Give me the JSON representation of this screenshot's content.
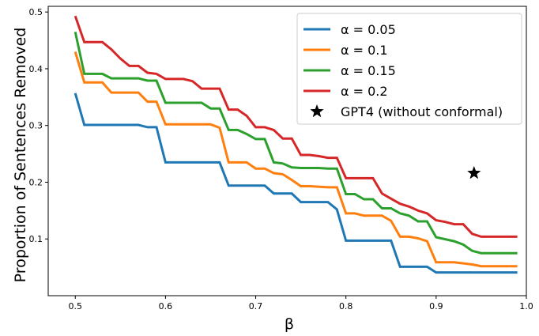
{
  "chart_data": {
    "type": "line",
    "title": "",
    "xlabel": "β",
    "ylabel": "Proportion of Sentences Removed",
    "xlim": [
      0.47,
      1.0
    ],
    "ylim": [
      0.0,
      0.51
    ],
    "xticks": [
      0.5,
      0.6,
      0.7,
      0.8,
      0.9,
      1.0
    ],
    "xtick_labels": [
      "0.5",
      "0.6",
      "0.7",
      "0.8",
      "0.9",
      "1.0"
    ],
    "yticks": [
      0.1,
      0.2,
      0.3,
      0.4,
      0.5
    ],
    "ytick_labels": [
      "0.1",
      "0.2",
      "0.3",
      "0.4",
      "0.5"
    ],
    "grid": false,
    "legend_position": "top-right",
    "series": [
      {
        "name": "α = 0.05",
        "color": "#1f77b4",
        "x": [
          0.5,
          0.51,
          0.57,
          0.58,
          0.59,
          0.6,
          0.66,
          0.67,
          0.71,
          0.72,
          0.74,
          0.75,
          0.78,
          0.79,
          0.8,
          0.85,
          0.86,
          0.89,
          0.9,
          0.99
        ],
        "y": [
          0.357,
          0.301,
          0.301,
          0.297,
          0.297,
          0.235,
          0.235,
          0.194,
          0.194,
          0.18,
          0.18,
          0.165,
          0.165,
          0.152,
          0.097,
          0.097,
          0.051,
          0.051,
          0.041,
          0.041
        ]
      },
      {
        "name": "α = 0.1",
        "color": "#ff7f0e",
        "x": [
          0.5,
          0.51,
          0.53,
          0.54,
          0.57,
          0.58,
          0.59,
          0.6,
          0.65,
          0.66,
          0.67,
          0.69,
          0.7,
          0.71,
          0.72,
          0.73,
          0.74,
          0.75,
          0.76,
          0.78,
          0.79,
          0.8,
          0.81,
          0.82,
          0.84,
          0.85,
          0.86,
          0.87,
          0.88,
          0.89,
          0.9,
          0.92,
          0.93,
          0.94,
          0.95,
          0.99
        ],
        "y": [
          0.43,
          0.376,
          0.376,
          0.358,
          0.358,
          0.342,
          0.342,
          0.302,
          0.302,
          0.296,
          0.235,
          0.235,
          0.224,
          0.224,
          0.216,
          0.214,
          0.204,
          0.193,
          0.193,
          0.191,
          0.191,
          0.145,
          0.145,
          0.141,
          0.141,
          0.132,
          0.104,
          0.104,
          0.101,
          0.096,
          0.059,
          0.059,
          0.057,
          0.055,
          0.052,
          0.052
        ]
      },
      {
        "name": "α = 0.15",
        "color": "#2ca02c",
        "x": [
          0.5,
          0.51,
          0.53,
          0.54,
          0.57,
          0.58,
          0.59,
          0.6,
          0.64,
          0.65,
          0.66,
          0.67,
          0.68,
          0.69,
          0.7,
          0.71,
          0.72,
          0.73,
          0.74,
          0.75,
          0.77,
          0.78,
          0.79,
          0.8,
          0.81,
          0.82,
          0.83,
          0.84,
          0.85,
          0.86,
          0.87,
          0.88,
          0.89,
          0.9,
          0.92,
          0.93,
          0.94,
          0.95,
          0.99
        ],
        "y": [
          0.465,
          0.391,
          0.391,
          0.383,
          0.383,
          0.379,
          0.379,
          0.34,
          0.34,
          0.33,
          0.33,
          0.292,
          0.292,
          0.285,
          0.276,
          0.276,
          0.235,
          0.233,
          0.226,
          0.225,
          0.225,
          0.224,
          0.224,
          0.179,
          0.179,
          0.17,
          0.17,
          0.154,
          0.154,
          0.145,
          0.141,
          0.131,
          0.131,
          0.103,
          0.096,
          0.09,
          0.079,
          0.075,
          0.075
        ]
      },
      {
        "name": "α = 0.2",
        "color": "#d62728",
        "x": [
          0.5,
          0.51,
          0.53,
          0.54,
          0.55,
          0.56,
          0.57,
          0.58,
          0.59,
          0.6,
          0.62,
          0.63,
          0.64,
          0.66,
          0.67,
          0.68,
          0.69,
          0.7,
          0.71,
          0.72,
          0.73,
          0.74,
          0.75,
          0.76,
          0.77,
          0.78,
          0.79,
          0.8,
          0.83,
          0.84,
          0.85,
          0.86,
          0.87,
          0.88,
          0.89,
          0.9,
          0.91,
          0.92,
          0.93,
          0.94,
          0.95,
          0.99
        ],
        "y": [
          0.493,
          0.447,
          0.447,
          0.434,
          0.418,
          0.405,
          0.405,
          0.393,
          0.391,
          0.382,
          0.382,
          0.378,
          0.365,
          0.365,
          0.328,
          0.328,
          0.317,
          0.297,
          0.297,
          0.292,
          0.277,
          0.277,
          0.248,
          0.248,
          0.246,
          0.243,
          0.243,
          0.207,
          0.207,
          0.18,
          0.171,
          0.162,
          0.157,
          0.15,
          0.145,
          0.133,
          0.13,
          0.126,
          0.126,
          0.109,
          0.104,
          0.104
        ]
      }
    ],
    "points": [
      {
        "name": "GPT4 (without conformal)",
        "marker": "star",
        "color": "#000000",
        "x": 0.942,
        "y": 0.216
      }
    ]
  }
}
